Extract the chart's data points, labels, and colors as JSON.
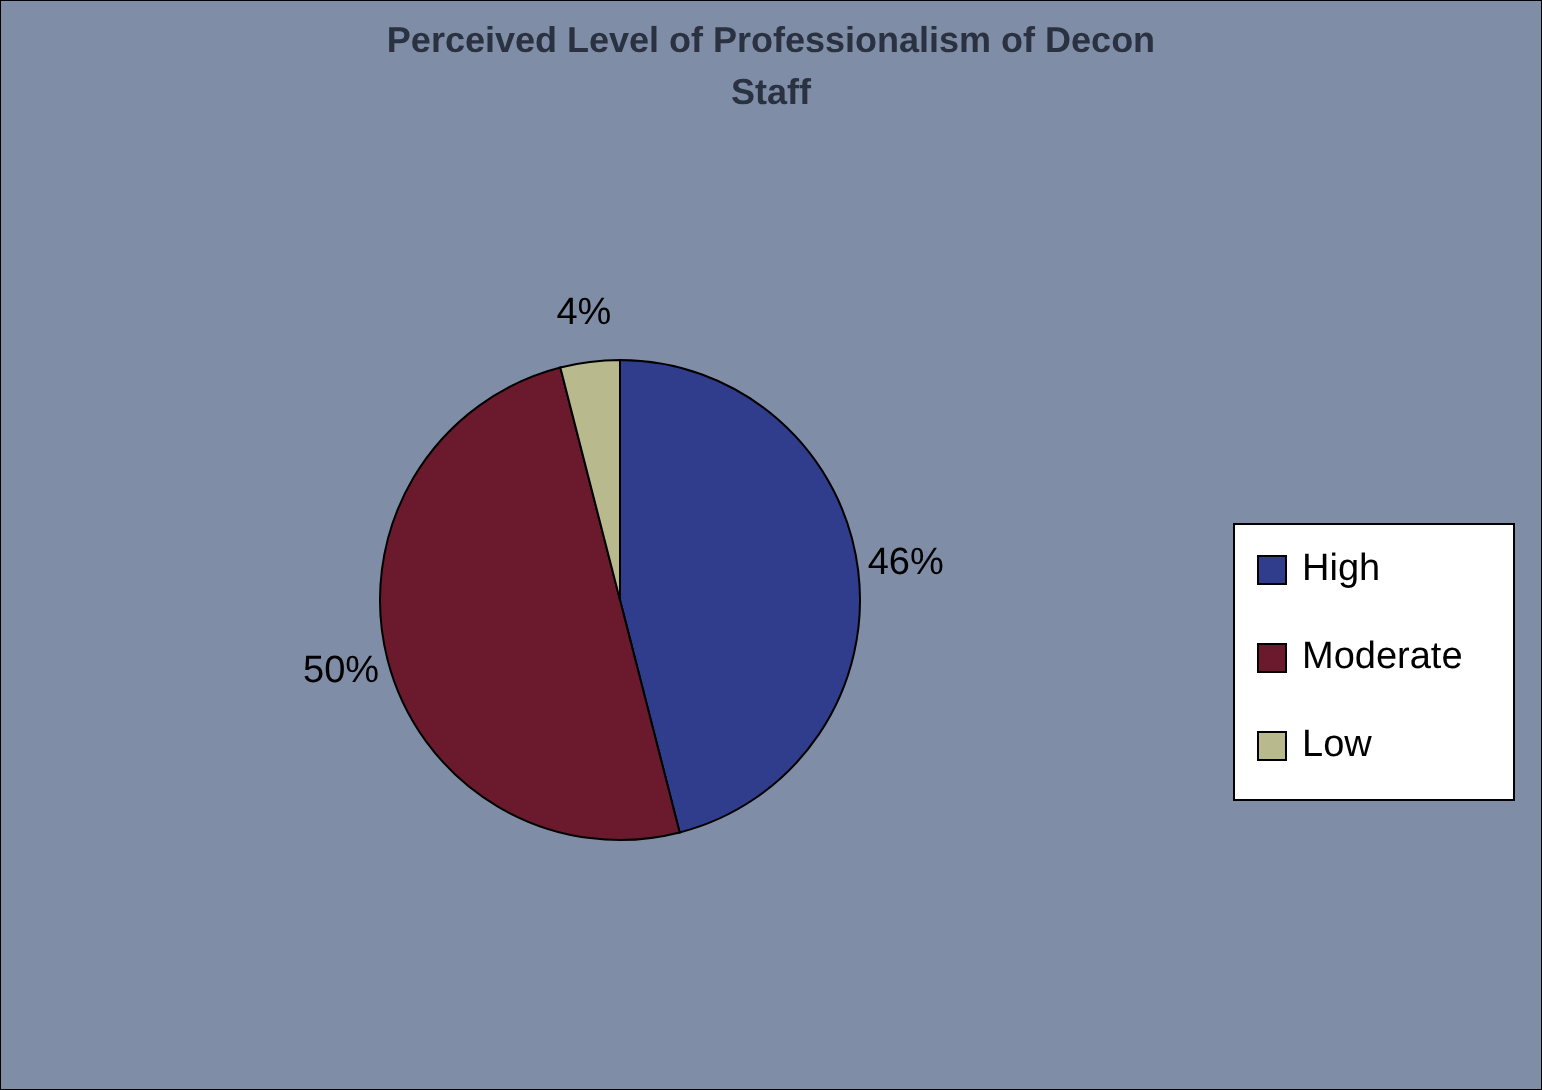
{
  "chart_data": {
    "type": "pie",
    "title": "Perceived Level of Professionalism of Decon Staff",
    "categories": [
      "High",
      "Moderate",
      "Low"
    ],
    "values": [
      46,
      50,
      4
    ],
    "colors": [
      "#303c8c",
      "#6a1a2c",
      "#b9b98e"
    ],
    "value_labels": [
      "46%",
      "50%",
      "4%"
    ],
    "legend": "right"
  }
}
